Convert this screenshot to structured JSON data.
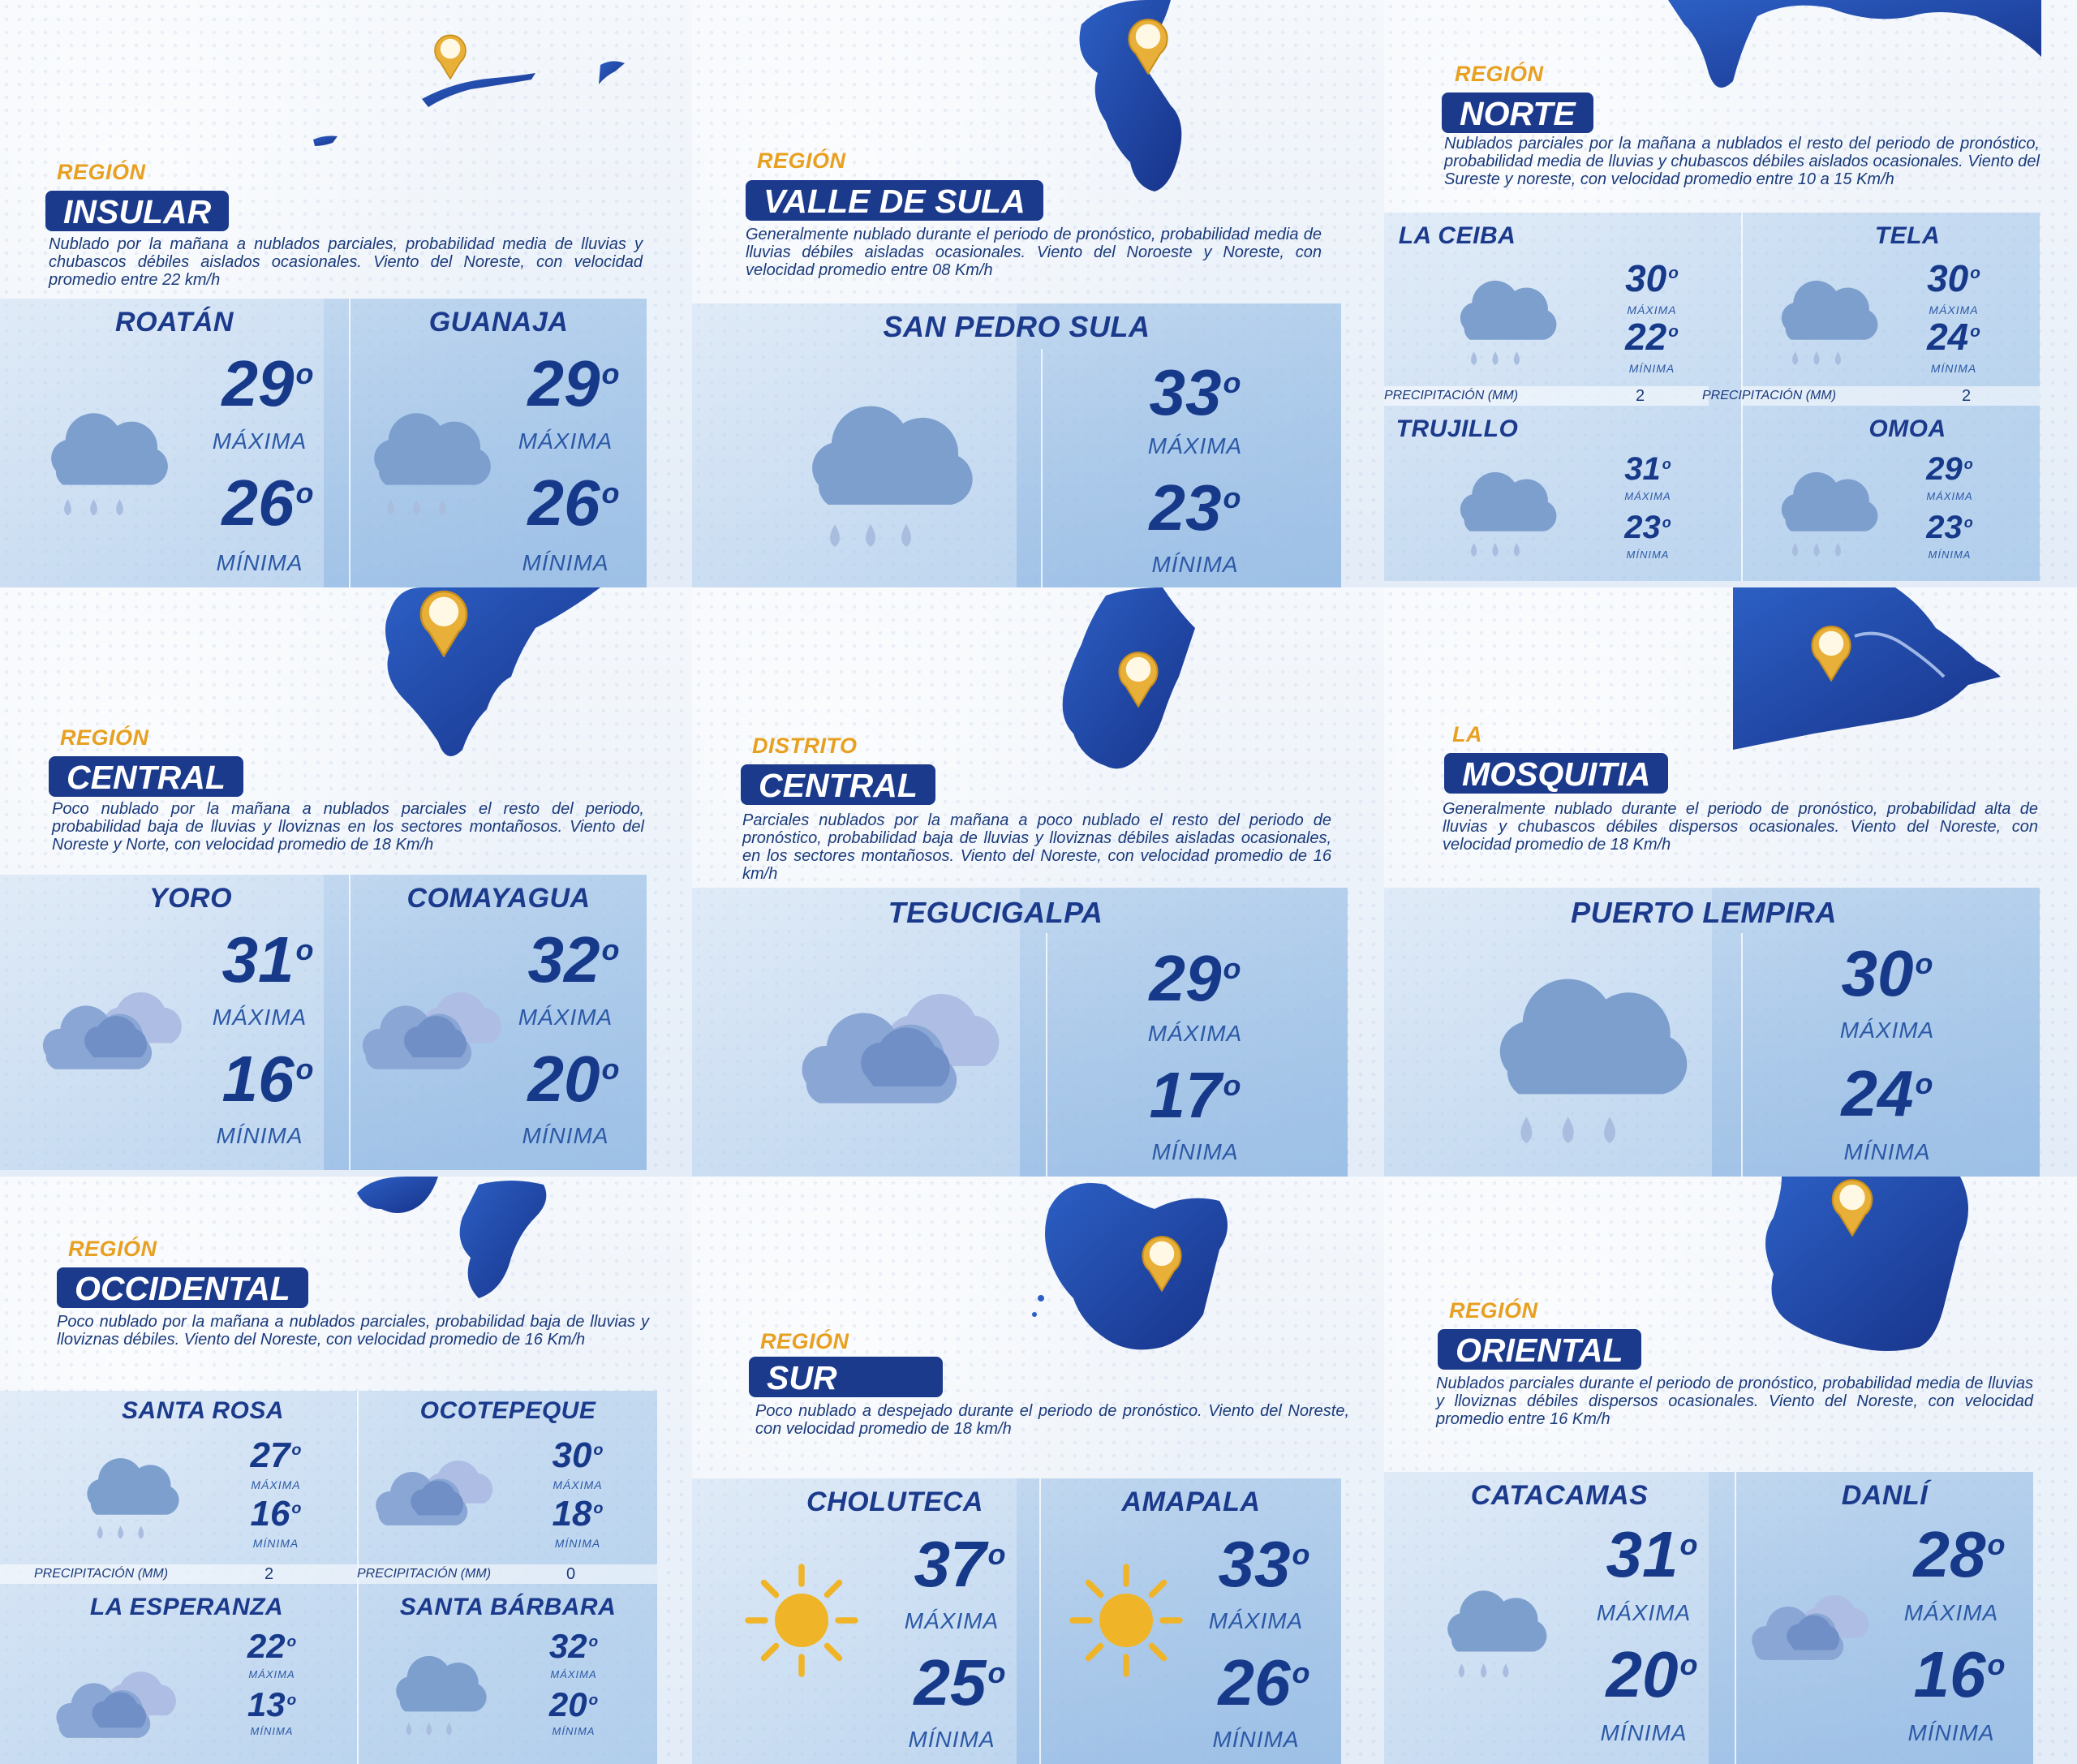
{
  "labels": {
    "max": "MÁXIMA",
    "min": "MÍNIMA",
    "precip": "PRECIPITACIÓN (MM)"
  },
  "colors": {
    "title_bg": "#1b3a8c",
    "prefix": "#e8a020",
    "temp": "#17398a",
    "map": "#1e47a8",
    "pin": "#e8b038"
  },
  "regions": {
    "insular": {
      "prefix": "REGIÓN",
      "name": "INSULAR",
      "description": "Nublado por la mañana a nublados parciales, probabilidad media de lluvias y chubascos débiles aislados ocasionales. Viento del Noreste, con velocidad promedio entre 22 km/h",
      "cities": [
        {
          "name": "ROATÁN",
          "icon": "rain-cloud-icon",
          "max": "29",
          "min": "26"
        },
        {
          "name": "GUANAJA",
          "icon": "rain-cloud-icon",
          "max": "29",
          "min": "26"
        }
      ]
    },
    "valle_sula": {
      "prefix": "REGIÓN",
      "name": "VALLE DE SULA",
      "description": "Generalmente nublado durante el periodo de pronóstico, probabilidad media de lluvias débiles aisladas ocasionales. Viento del Noroeste y Noreste, con velocidad promedio entre 08 Km/h",
      "cities": [
        {
          "name": "SAN PEDRO SULA",
          "icon": "rain-cloud-icon",
          "max": "33",
          "min": "23"
        }
      ]
    },
    "norte": {
      "prefix": "REGIÓN",
      "name": "NORTE",
      "description": "Nublados parciales por la mañana a nublados el resto del periodo de pronóstico, probabilidad media de lluvias y chubascos débiles aislados ocasionales. Viento del Sureste y noreste, con velocidad promedio entre 10 a 15 Km/h",
      "cities": [
        {
          "name": "LA CEIBA",
          "icon": "rain-cloud-icon",
          "max": "30",
          "min": "22",
          "precip": "2"
        },
        {
          "name": "TELA",
          "icon": "rain-cloud-icon",
          "max": "30",
          "min": "24",
          "precip": "2"
        },
        {
          "name": "TRUJILLO",
          "icon": "rain-cloud-icon",
          "max": "31",
          "min": "23"
        },
        {
          "name": "OMOA",
          "icon": "rain-cloud-icon",
          "max": "29",
          "min": "23"
        }
      ]
    },
    "central": {
      "prefix": "REGIÓN",
      "name": "CENTRAL",
      "description": "Poco nublado por la mañana a nublados parciales el resto del periodo, probabilidad baja de lluvias y lloviznas en los sectores montañosos. Viento del Noreste y Norte, con velocidad promedio de 18 Km/h",
      "cities": [
        {
          "name": "YORO",
          "icon": "cloudy-icon",
          "max": "31",
          "min": "16"
        },
        {
          "name": "COMAYAGUA",
          "icon": "cloudy-icon",
          "max": "32",
          "min": "20"
        }
      ]
    },
    "distrito": {
      "prefix": "DISTRITO",
      "name": "CENTRAL",
      "description": "Parciales nublados por la mañana a poco nublado el resto del periodo de pronóstico, probabilidad baja de lluvias y lloviznas débiles aisladas ocasionales, en los sectores montañosos. Viento del Noreste, con velocidad promedio de 16 km/h",
      "cities": [
        {
          "name": "TEGUCIGALPA",
          "icon": "cloudy-icon",
          "max": "29",
          "min": "17"
        }
      ]
    },
    "mosquitia": {
      "prefix": "LA",
      "name": "MOSQUITIA",
      "description": "Generalmente nublado durante el periodo de pronóstico, probabilidad alta de lluvias y chubascos débiles dispersos ocasionales. Viento del Noreste, con velocidad promedio de 18 Km/h",
      "cities": [
        {
          "name": "PUERTO LEMPIRA",
          "icon": "rain-cloud-icon",
          "max": "30",
          "min": "24"
        }
      ]
    },
    "occidental": {
      "prefix": "REGIÓN",
      "name": "OCCIDENTAL",
      "description": "Poco nublado por la mañana a nublados parciales, probabilidad baja de lluvias y lloviznas débiles. Viento del Noreste, con velocidad promedio de 16 Km/h",
      "cities": [
        {
          "name": "SANTA ROSA",
          "icon": "rain-cloud-icon",
          "max": "27",
          "min": "16",
          "precip": "2"
        },
        {
          "name": "OCOTEPEQUE",
          "icon": "cloudy-icon",
          "max": "30",
          "min": "18",
          "precip": "0"
        },
        {
          "name": "LA ESPERANZA",
          "icon": "cloudy-icon",
          "max": "22",
          "min": "13"
        },
        {
          "name": "SANTA BÁRBARA",
          "icon": "rain-cloud-icon",
          "max": "32",
          "min": "20"
        }
      ]
    },
    "sur": {
      "prefix": "REGIÓN",
      "name": "SUR",
      "description": "Poco nublado a despejado durante el periodo de pronóstico. Viento del Noreste, con velocidad promedio de 18 km/h",
      "cities": [
        {
          "name": "CHOLUTECA",
          "icon": "sun-icon",
          "max": "37",
          "min": "25"
        },
        {
          "name": "AMAPALA",
          "icon": "sun-icon",
          "max": "33",
          "min": "26"
        }
      ]
    },
    "oriental": {
      "prefix": "REGIÓN",
      "name": "ORIENTAL",
      "description": "Nublados parciales durante el periodo de pronóstico, probabilidad media de lluvias y lloviznas débiles dispersos ocasionales. Viento del Noreste, con velocidad promedio entre 16 Km/h",
      "cities": [
        {
          "name": "CATACAMAS",
          "icon": "rain-cloud-icon",
          "max": "31",
          "min": "20"
        },
        {
          "name": "DANLÍ",
          "icon": "cloudy-icon",
          "max": "28",
          "min": "16"
        }
      ]
    }
  }
}
